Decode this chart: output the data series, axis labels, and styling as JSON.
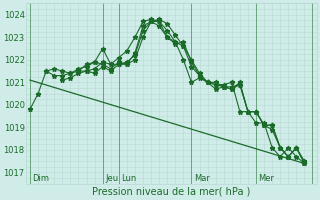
{
  "xlabel": "Pression niveau de la mer( hPa )",
  "bg_color": "#d0ece8",
  "grid_color": "#b8d8d4",
  "line_color": "#1a6b2a",
  "ylim": [
    1016.5,
    1024.5
  ],
  "xlim": [
    -0.5,
    35.5
  ],
  "series": [
    {
      "x": [
        0,
        1,
        2,
        3,
        4,
        5,
        6,
        7,
        8,
        9,
        10,
        11,
        12,
        13,
        14,
        15,
        16,
        17,
        18,
        19,
        20,
        21,
        22,
        23,
        24,
        25,
        26,
        27,
        28,
        29,
        30,
        31,
        32,
        33,
        34
      ],
      "y": [
        1019.8,
        1020.5,
        1021.5,
        1021.6,
        1021.5,
        1021.4,
        1021.5,
        1021.8,
        1021.9,
        1022.5,
        1021.8,
        1022.1,
        1022.4,
        1023.0,
        1023.7,
        1023.8,
        1023.7,
        1023.0,
        1022.8,
        1022.0,
        1021.0,
        1021.2,
        1021.0,
        1020.9,
        1020.9,
        1021.0,
        1019.7,
        1019.7,
        1019.2,
        1019.2,
        1018.1,
        1017.7,
        1018.1,
        1017.7,
        1017.4
      ],
      "straight": false
    },
    {
      "x": [
        2,
        3,
        4,
        5,
        6,
        7,
        8,
        9,
        10,
        11,
        12,
        13,
        14,
        15,
        16,
        17,
        18,
        19,
        20,
        21,
        22,
        23,
        24,
        25,
        26,
        27,
        28,
        29,
        30,
        31,
        32,
        33,
        34
      ],
      "y": [
        1021.5,
        1021.3,
        1021.3,
        1021.4,
        1021.6,
        1021.7,
        1021.9,
        1021.8,
        1021.6,
        1021.9,
        1021.8,
        1022.0,
        1023.0,
        1023.7,
        1023.8,
        1023.6,
        1023.1,
        1022.6,
        1022.0,
        1021.4,
        1021.0,
        1020.7,
        1020.8,
        1020.8,
        1020.9,
        1019.7,
        1019.7,
        1019.1,
        1019.1,
        1018.1,
        1017.7,
        1018.1,
        1017.5
      ],
      "straight": false
    },
    {
      "x": [
        4,
        5,
        6,
        7,
        8,
        9,
        10,
        11,
        12,
        13,
        14,
        15,
        16,
        17,
        18,
        19,
        20,
        21,
        22,
        23,
        24,
        25,
        26,
        27,
        28,
        29,
        30,
        31,
        32,
        33,
        34
      ],
      "y": [
        1021.1,
        1021.2,
        1021.4,
        1021.5,
        1021.6,
        1021.9,
        1021.8,
        1021.8,
        1021.9,
        1022.2,
        1023.3,
        1023.7,
        1023.7,
        1023.3,
        1022.8,
        1022.6,
        1021.7,
        1021.3,
        1021.0,
        1021.0,
        1020.8,
        1020.7,
        1020.9,
        1019.7,
        1019.7,
        1019.1,
        1019.1,
        1018.1,
        1017.7,
        1018.1,
        1017.4
      ],
      "straight": false
    },
    {
      "x": [
        6,
        7,
        8,
        9,
        10,
        11,
        12,
        13,
        14,
        15,
        16,
        17,
        18,
        19,
        20,
        21,
        22,
        23,
        24,
        25,
        26,
        27,
        28,
        29,
        30,
        31,
        32,
        33,
        34
      ],
      "y": [
        1021.5,
        1021.5,
        1021.4,
        1021.7,
        1021.5,
        1021.8,
        1021.8,
        1022.3,
        1023.5,
        1023.7,
        1023.5,
        1023.0,
        1022.7,
        1022.8,
        1021.9,
        1021.3,
        1021.0,
        1020.9,
        1020.8,
        1020.7,
        1021.0,
        1019.7,
        1019.7,
        1019.1,
        1018.9,
        1018.1,
        1017.7,
        1018.1,
        1017.4
      ],
      "straight": false
    },
    {
      "x": [
        0,
        34
      ],
      "y": [
        1021.1,
        1017.4
      ],
      "straight": true
    }
  ],
  "xtick_positions": [
    0,
    9,
    11,
    20,
    28,
    35
  ],
  "xtick_labels": [
    "Dim",
    "Jeu",
    "Lun",
    "Mar",
    "Mer",
    ""
  ],
  "vline_positions": [
    0,
    9,
    11,
    20,
    28,
    35
  ],
  "ytick_positions": [
    1017,
    1018,
    1019,
    1020,
    1021,
    1022,
    1023,
    1024
  ],
  "ytick_labels": [
    "1017",
    "1018",
    "1019",
    "1020",
    "1021",
    "1022",
    "1023",
    "1024"
  ]
}
